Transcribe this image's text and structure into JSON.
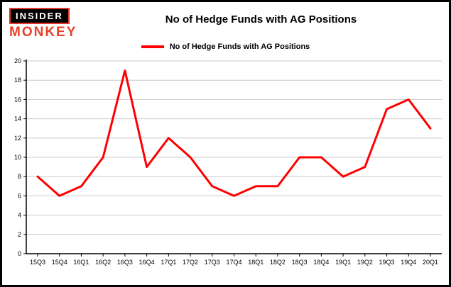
{
  "logo": {
    "line1": "INSIDER",
    "line2": "MONKEY"
  },
  "header": {
    "title": "No of Hedge Funds with AG Positions"
  },
  "legend": {
    "label": "No of Hedge Funds with AG Positions",
    "color": "#ff0000"
  },
  "chart_data": {
    "type": "line",
    "title": "No of Hedge Funds with AG Positions",
    "categories": [
      "15Q3",
      "15Q4",
      "16Q1",
      "16Q2",
      "16Q3",
      "16Q4",
      "17Q1",
      "17Q2",
      "17Q3",
      "17Q4",
      "18Q1",
      "18Q2",
      "18Q3",
      "18Q4",
      "19Q1",
      "19Q2",
      "19Q3",
      "19Q4",
      "20Q1"
    ],
    "values": [
      8,
      6,
      7,
      10,
      19,
      9,
      12,
      10,
      7,
      6,
      7,
      7,
      10,
      10,
      8,
      9,
      15,
      16,
      13
    ],
    "xlabel": "",
    "ylabel": "",
    "ylim": [
      0,
      20
    ],
    "ytick_step": 2,
    "grid": true,
    "legend_position": "top",
    "line_color": "#ff0000",
    "grid_color": "#c8c8c8",
    "axis_color": "#000000"
  }
}
